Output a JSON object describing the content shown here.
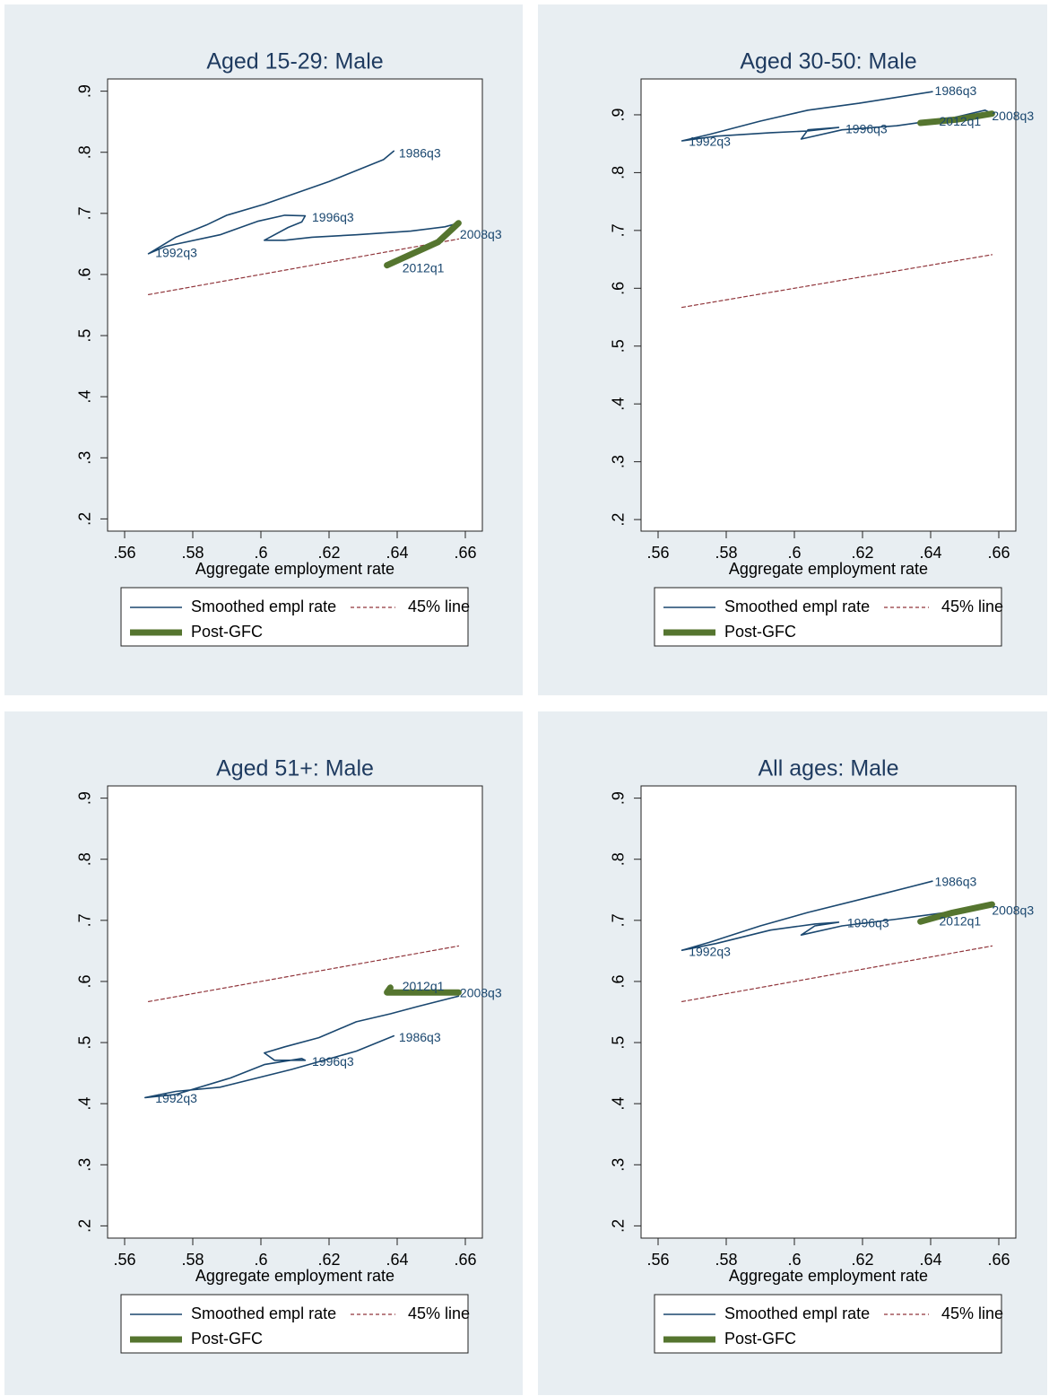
{
  "chart_data": [
    {
      "type": "line",
      "title": "Aged 15-29: Male",
      "x_label": "Aggregate employment rate",
      "legend": "bottom",
      "background": "#e8eef2",
      "xlim": [
        0.555,
        0.665
      ],
      "ylim": [
        0.18,
        0.92
      ],
      "xticks": [
        {
          "value": 0.56,
          "label": ".56"
        },
        {
          "value": 0.58,
          "label": ".58"
        },
        {
          "value": 0.6,
          "label": ".6"
        },
        {
          "value": 0.62,
          "label": ".62"
        },
        {
          "value": 0.64,
          "label": ".64"
        },
        {
          "value": 0.66,
          "label": ".66"
        }
      ],
      "yticks": [
        {
          "value": 0.2,
          "label": ".2"
        },
        {
          "value": 0.3,
          "label": ".3"
        },
        {
          "value": 0.4,
          "label": ".4"
        },
        {
          "value": 0.5,
          "label": ".5"
        },
        {
          "value": 0.6,
          "label": ".6"
        },
        {
          "value": 0.7,
          "label": ".7"
        },
        {
          "value": 0.8,
          "label": ".8"
        },
        {
          "value": 0.9,
          "label": ".9"
        }
      ],
      "series": [
        {
          "name": "Smoothed empl rate",
          "color": "#1a476f",
          "line_style": "solid",
          "x": [
            0.639,
            0.636,
            0.62,
            0.601,
            0.59,
            0.584,
            0.575,
            0.567,
            0.572,
            0.588,
            0.599,
            0.607,
            0.613,
            0.612,
            0.608,
            0.601,
            0.607,
            0.615,
            0.628,
            0.644,
            0.654,
            0.658
          ],
          "values": [
            0.802,
            0.788,
            0.752,
            0.715,
            0.697,
            0.681,
            0.661,
            0.634,
            0.646,
            0.665,
            0.687,
            0.697,
            0.696,
            0.686,
            0.677,
            0.656,
            0.656,
            0.661,
            0.665,
            0.671,
            0.678,
            0.684
          ]
        },
        {
          "name": "45% line",
          "color": "#90353b",
          "line_style": "dashed",
          "x": [
            0.567,
            0.658
          ],
          "values": [
            0.567,
            0.658
          ]
        },
        {
          "name": "Post-GFC",
          "color": "#55752f",
          "line_style": "thick",
          "x": [
            0.658,
            0.652,
            0.637
          ],
          "values": [
            0.684,
            0.653,
            0.615
          ]
        }
      ],
      "annotations": [
        {
          "text": "1986q3",
          "x": 0.6405,
          "y": 0.797
        },
        {
          "text": "1992q3",
          "x": 0.569,
          "y": 0.634
        },
        {
          "text": "1996q3",
          "x": 0.615,
          "y": 0.692
        },
        {
          "text": "2008q3",
          "x": 0.6584,
          "y": 0.664
        },
        {
          "text": "2012q1",
          "x": 0.6415,
          "y": 0.609
        }
      ]
    },
    {
      "type": "line",
      "title": "Aged 30-50: Male",
      "x_label": "Aggregate employment rate",
      "legend": "bottom",
      "background": "#e8eef2",
      "xlim": [
        0.555,
        0.665
      ],
      "ylim": [
        0.18,
        0.962
      ],
      "xticks": [
        {
          "value": 0.56,
          "label": ".56"
        },
        {
          "value": 0.58,
          "label": ".58"
        },
        {
          "value": 0.6,
          "label": ".6"
        },
        {
          "value": 0.62,
          "label": ".62"
        },
        {
          "value": 0.64,
          "label": ".64"
        },
        {
          "value": 0.66,
          "label": ".66"
        }
      ],
      "yticks": [
        {
          "value": 0.2,
          "label": ".2"
        },
        {
          "value": 0.3,
          "label": ".3"
        },
        {
          "value": 0.4,
          "label": ".4"
        },
        {
          "value": 0.5,
          "label": ".5"
        },
        {
          "value": 0.6,
          "label": ".6"
        },
        {
          "value": 0.7,
          "label": ".7"
        },
        {
          "value": 0.8,
          "label": ".8"
        },
        {
          "value": 0.9,
          "label": ".9"
        }
      ],
      "series": [
        {
          "name": "Smoothed empl rate",
          "color": "#1a476f",
          "line_style": "solid",
          "x": [
            0.6405,
            0.619,
            0.604,
            0.59,
            0.575,
            0.567,
            0.577,
            0.593,
            0.604,
            0.613,
            0.604,
            0.602,
            0.614,
            0.63,
            0.646,
            0.656,
            0.658
          ],
          "values": [
            0.94,
            0.92,
            0.908,
            0.889,
            0.866,
            0.855,
            0.863,
            0.869,
            0.872,
            0.878,
            0.874,
            0.858,
            0.874,
            0.881,
            0.894,
            0.908,
            0.902
          ]
        },
        {
          "name": "45% line",
          "color": "#90353b",
          "line_style": "dashed",
          "x": [
            0.567,
            0.658
          ],
          "values": [
            0.567,
            0.658
          ]
        },
        {
          "name": "Post-GFC",
          "color": "#55752f",
          "line_style": "thick",
          "x": [
            0.658,
            0.648,
            0.637
          ],
          "values": [
            0.902,
            0.892,
            0.886
          ]
        }
      ],
      "annotations": [
        {
          "text": "1986q3",
          "x": 0.6412,
          "y": 0.94
        },
        {
          "text": "1992q3",
          "x": 0.569,
          "y": 0.852
        },
        {
          "text": "1996q3",
          "x": 0.615,
          "y": 0.874
        },
        {
          "text": "2008q3",
          "x": 0.658,
          "y": 0.896
        },
        {
          "text": "2012q1",
          "x": 0.6425,
          "y": 0.887
        }
      ]
    },
    {
      "type": "line",
      "title": "Aged 51+: Male",
      "x_label": "Aggregate employment rate",
      "legend": "bottom",
      "background": "#e8eef2",
      "xlim": [
        0.555,
        0.665
      ],
      "ylim": [
        0.18,
        0.92
      ],
      "xticks": [
        {
          "value": 0.56,
          "label": ".56"
        },
        {
          "value": 0.58,
          "label": ".58"
        },
        {
          "value": 0.6,
          "label": ".6"
        },
        {
          "value": 0.62,
          "label": ".62"
        },
        {
          "value": 0.64,
          "label": ".64"
        },
        {
          "value": 0.66,
          "label": ".66"
        }
      ],
      "yticks": [
        {
          "value": 0.2,
          "label": ".2"
        },
        {
          "value": 0.3,
          "label": ".3"
        },
        {
          "value": 0.4,
          "label": ".4"
        },
        {
          "value": 0.5,
          "label": ".5"
        },
        {
          "value": 0.6,
          "label": ".6"
        },
        {
          "value": 0.7,
          "label": ".7"
        },
        {
          "value": 0.8,
          "label": ".8"
        },
        {
          "value": 0.9,
          "label": ".9"
        }
      ],
      "series": [
        {
          "name": "Smoothed empl rate",
          "color": "#1a476f",
          "line_style": "solid",
          "x": [
            0.639,
            0.628,
            0.609,
            0.588,
            0.575,
            0.566,
            0.575,
            0.591,
            0.601,
            0.612,
            0.613,
            0.604,
            0.601,
            0.607,
            0.617,
            0.628,
            0.638,
            0.646,
            0.658
          ],
          "values": [
            0.511,
            0.486,
            0.456,
            0.427,
            0.42,
            0.41,
            0.415,
            0.442,
            0.464,
            0.474,
            0.471,
            0.471,
            0.483,
            0.493,
            0.508,
            0.534,
            0.547,
            0.559,
            0.576
          ]
        },
        {
          "name": "45% line",
          "color": "#90353b",
          "line_style": "dashed",
          "x": [
            0.567,
            0.658
          ],
          "values": [
            0.567,
            0.658
          ]
        },
        {
          "name": "Post-GFC",
          "color": "#55752f",
          "line_style": "thick",
          "x": [
            0.658,
            0.646,
            0.637,
            0.638
          ],
          "values": [
            0.582,
            0.582,
            0.582,
            0.59
          ]
        }
      ],
      "annotations": [
        {
          "text": "1986q3",
          "x": 0.6405,
          "y": 0.507
        },
        {
          "text": "1992q3",
          "x": 0.569,
          "y": 0.407
        },
        {
          "text": "1996q3",
          "x": 0.615,
          "y": 0.467
        },
        {
          "text": "2008q3",
          "x": 0.6584,
          "y": 0.58
        },
        {
          "text": "2012q1",
          "x": 0.6415,
          "y": 0.591
        }
      ]
    },
    {
      "type": "line",
      "title": "All ages: Male",
      "x_label": "Aggregate employment rate",
      "legend": "bottom",
      "background": "#e8eef2",
      "xlim": [
        0.555,
        0.665
      ],
      "ylim": [
        0.18,
        0.92
      ],
      "xticks": [
        {
          "value": 0.56,
          "label": ".56"
        },
        {
          "value": 0.58,
          "label": ".58"
        },
        {
          "value": 0.6,
          "label": ".6"
        },
        {
          "value": 0.62,
          "label": ".62"
        },
        {
          "value": 0.64,
          "label": ".64"
        },
        {
          "value": 0.66,
          "label": ".66"
        }
      ],
      "yticks": [
        {
          "value": 0.2,
          "label": ".2"
        },
        {
          "value": 0.3,
          "label": ".3"
        },
        {
          "value": 0.4,
          "label": ".4"
        },
        {
          "value": 0.5,
          "label": ".5"
        },
        {
          "value": 0.6,
          "label": ".6"
        },
        {
          "value": 0.7,
          "label": ".7"
        },
        {
          "value": 0.8,
          "label": ".8"
        },
        {
          "value": 0.9,
          "label": ".9"
        }
      ],
      "series": [
        {
          "name": "Smoothed empl rate",
          "color": "#1a476f",
          "line_style": "solid",
          "x": [
            0.6405,
            0.625,
            0.604,
            0.59,
            0.575,
            0.567,
            0.577,
            0.593,
            0.606,
            0.613,
            0.606,
            0.602,
            0.614,
            0.63,
            0.646,
            0.658
          ],
          "values": [
            0.764,
            0.742,
            0.713,
            0.691,
            0.664,
            0.651,
            0.662,
            0.684,
            0.694,
            0.697,
            0.691,
            0.676,
            0.691,
            0.702,
            0.714,
            0.724
          ]
        },
        {
          "name": "45% line",
          "color": "#90353b",
          "line_style": "dashed",
          "x": [
            0.567,
            0.658
          ],
          "values": [
            0.567,
            0.658
          ]
        },
        {
          "name": "Post-GFC",
          "color": "#55752f",
          "line_style": "thick",
          "x": [
            0.658,
            0.646,
            0.637
          ],
          "values": [
            0.726,
            0.712,
            0.698
          ]
        }
      ],
      "annotations": [
        {
          "text": "1986q3",
          "x": 0.6412,
          "y": 0.762
        },
        {
          "text": "1992q3",
          "x": 0.569,
          "y": 0.647
        },
        {
          "text": "1996q3",
          "x": 0.6155,
          "y": 0.694
        },
        {
          "text": "2008q3",
          "x": 0.658,
          "y": 0.715
        },
        {
          "text": "2012q1",
          "x": 0.6425,
          "y": 0.697
        }
      ]
    }
  ]
}
